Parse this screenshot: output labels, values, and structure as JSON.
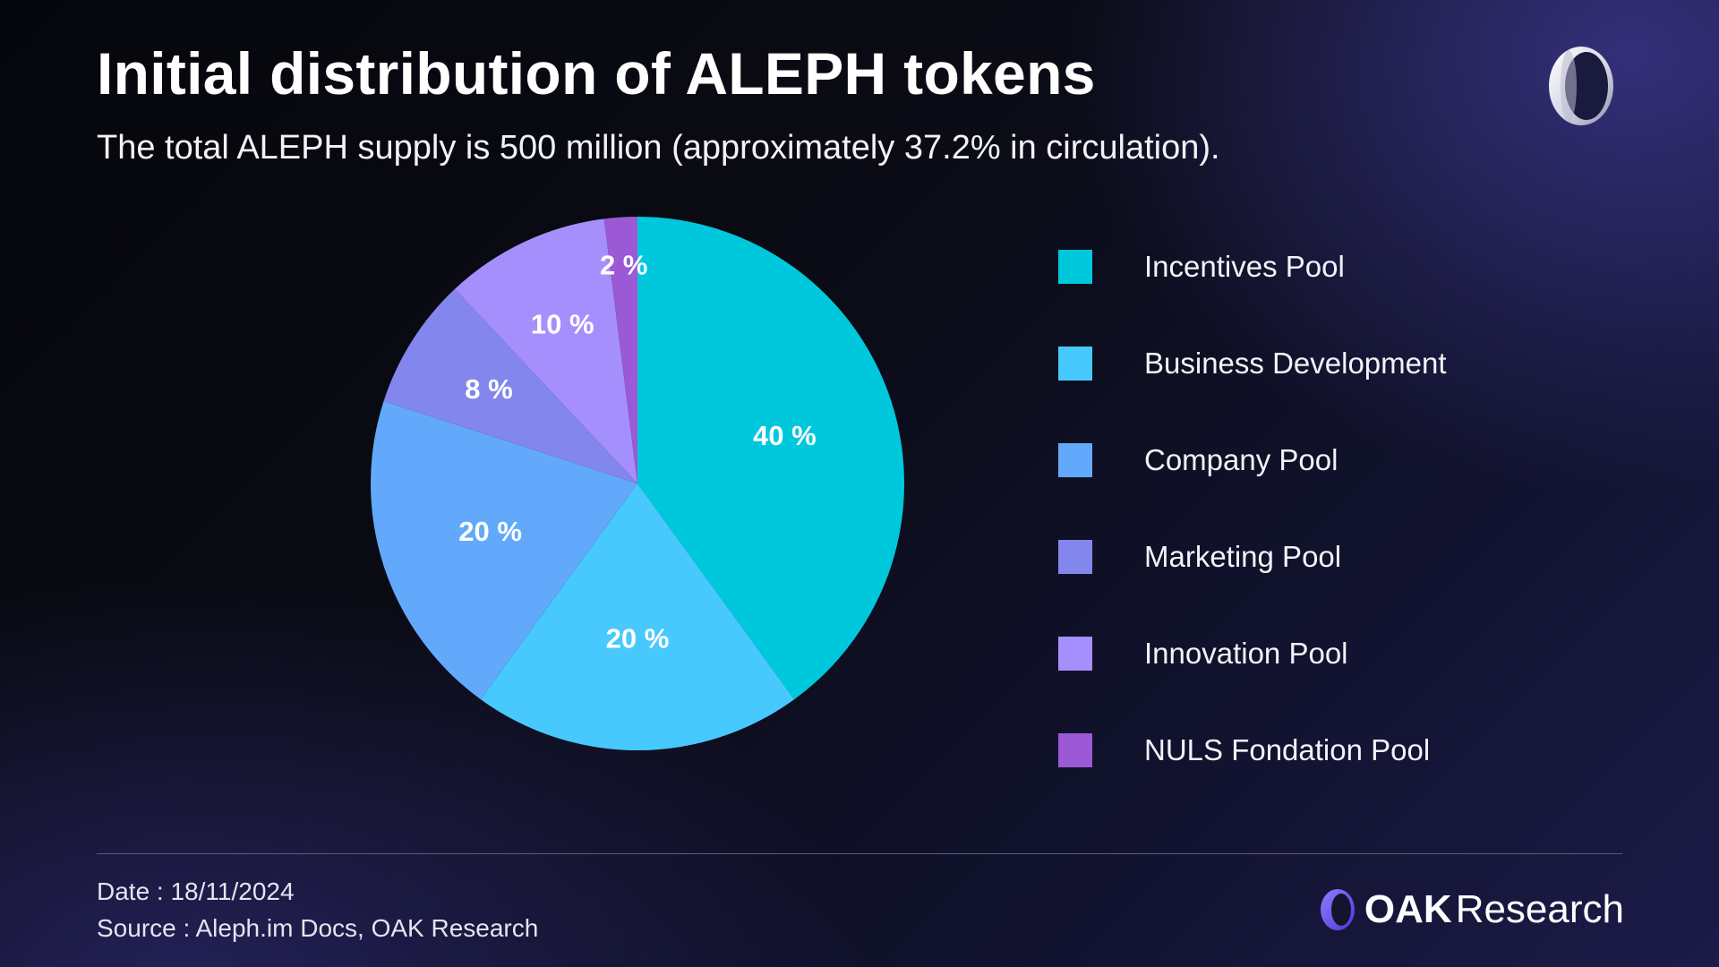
{
  "header": {
    "title": "Initial distribution of ALEPH tokens",
    "subtitle": "The total ALEPH supply is 500 million (approximately 37.2% in circulation)."
  },
  "chart_data": {
    "type": "pie",
    "labels": [
      "Incentives Pool",
      "Business Development",
      "Company Pool",
      "Marketing Pool",
      "Innovation Pool",
      "NULS Fondation Pool"
    ],
    "values": [
      40,
      20,
      20,
      8,
      10,
      2
    ],
    "unit": "%",
    "colors": [
      "#00c8dc",
      "#47c9fd",
      "#62a9fb",
      "#8386ec",
      "#a58ffc",
      "#9b59d6"
    ],
    "legend_position": "right"
  },
  "footer": {
    "date": "Date : 18/11/2024",
    "source": "Source : Aleph.im Docs, OAK Research"
  },
  "brand": {
    "logo_bold": "OAK",
    "logo_light": "Research",
    "accent": "#6f5cf0"
  }
}
